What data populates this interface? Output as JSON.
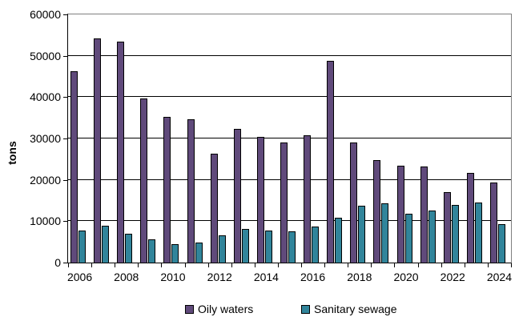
{
  "chart_data": {
    "type": "bar",
    "title": "",
    "xlabel": "",
    "ylabel": "tons",
    "ylim": [
      0,
      60000
    ],
    "ytick_step": 10000,
    "ytick_labels": [
      "0",
      "10000",
      "20000",
      "30000",
      "40000",
      "50000",
      "60000"
    ],
    "categories": [
      "2006",
      "2007",
      "2008",
      "2009",
      "2010",
      "2011",
      "2012",
      "2013",
      "2014",
      "2015",
      "2016",
      "2017",
      "2018",
      "2019",
      "2020",
      "2021",
      "2022",
      "2023",
      "2024"
    ],
    "xtick_labels": [
      "2006",
      "2008",
      "2010",
      "2012",
      "2014",
      "2016",
      "2018",
      "2020",
      "2022",
      "2024"
    ],
    "grid": true,
    "legend_position": "bottom",
    "series": [
      {
        "name": "Oily waters",
        "color": "#604a7b",
        "values": [
          46300,
          54100,
          53400,
          39600,
          35300,
          34700,
          26300,
          32400,
          30300,
          29100,
          30800,
          48700,
          29000,
          24700,
          23400,
          23200,
          17100,
          21700,
          19400
        ]
      },
      {
        "name": "Sanitary sewage",
        "color": "#31859b",
        "values": [
          7700,
          8900,
          7000,
          5600,
          4400,
          4800,
          6500,
          8100,
          7700,
          7600,
          8700,
          10800,
          13800,
          14300,
          11900,
          12600,
          14000,
          14600,
          9200
        ]
      }
    ]
  },
  "colors": {
    "plot_border": "#808080",
    "axis": "#000000"
  }
}
